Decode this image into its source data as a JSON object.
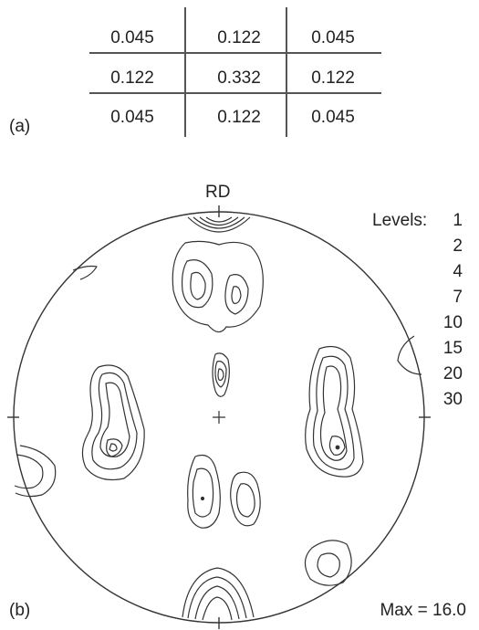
{
  "panel_a": {
    "label": "(a)",
    "kernel": [
      [
        "0.045",
        "0.122",
        "0.045"
      ],
      [
        "0.122",
        "0.332",
        "0.122"
      ],
      [
        "0.045",
        "0.122",
        "0.045"
      ]
    ]
  },
  "panel_b": {
    "label": "(b)",
    "rd_label": "RD",
    "levels_title": "Levels:",
    "levels": [
      "1",
      "2",
      "4",
      "7",
      "10",
      "15",
      "20",
      "30"
    ],
    "max_label": "Max = 16.0"
  },
  "colors": {
    "ink": "#222222",
    "grid": "#555555"
  }
}
